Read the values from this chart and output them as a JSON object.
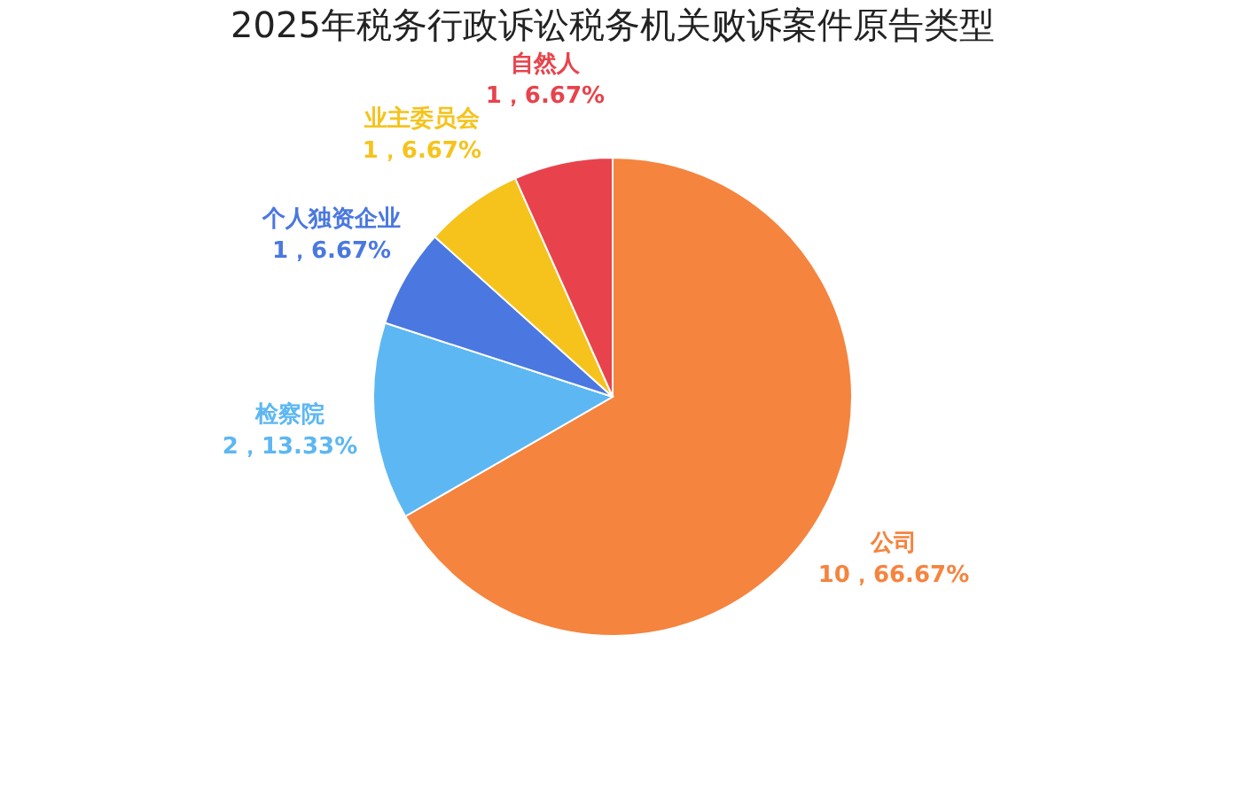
{
  "chart_data": {
    "type": "pie",
    "title": "2025年税务行政诉讼税务机关败诉案件原告类型",
    "categories": [
      "公司",
      "检察院",
      "个人独资企业",
      "业主委员会",
      "自然人"
    ],
    "values": [
      10,
      2,
      1,
      1,
      1
    ],
    "value_labels": [
      "10，66.67%",
      "2，13.33%",
      "1，6.67%",
      "1，6.67%",
      "1，6.67%"
    ],
    "colors": [
      "#f5843e",
      "#5db7f2",
      "#4a78e0",
      "#f5c31c",
      "#e8434c"
    ],
    "legend": false
  }
}
